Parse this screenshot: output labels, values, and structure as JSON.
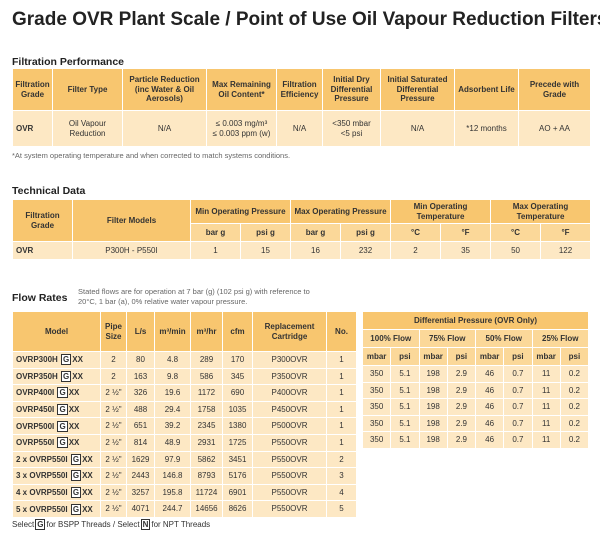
{
  "title": "Grade OVR Plant Scale / Point of Use Oil Vapour Reduction Filters",
  "performance": {
    "heading": "Filtration Performance",
    "headers": [
      "Filtration Grade",
      "Filter Type",
      "Particle Reduction (inc Water & Oil Aerosols)",
      "Max Remaining Oil Content*",
      "Filtration Efficiency",
      "Initial Dry Differential Pressure",
      "Initial Saturated Differential Pressure",
      "Adsorbent Life",
      "Precede with Grade"
    ],
    "rows": [
      [
        "OVR",
        [
          "Oil Vapour",
          "Reduction"
        ],
        "N/A",
        [
          "≤ 0.003 mg/m³",
          "≤ 0.003 ppm (w)"
        ],
        "N/A",
        [
          "<350 mbar",
          "<5 psi"
        ],
        "N/A",
        "*12 months",
        "AO + AA"
      ]
    ],
    "note": "*At system operating temperature and when corrected to match systems conditions."
  },
  "technical": {
    "heading": "Technical Data",
    "headers": [
      "Filtration Grade",
      "Filter Models"
    ],
    "groups": [
      {
        "label": "Min Operating Pressure",
        "units": [
          "bar g",
          "psi g"
        ]
      },
      {
        "label": "Max Operating Pressure",
        "units": [
          "bar g",
          "psi g"
        ]
      },
      {
        "label": "Min Operating Temperature",
        "units": [
          "°C",
          "°F"
        ]
      },
      {
        "label": "Max Operating Temperature",
        "units": [
          "°C",
          "°F"
        ]
      }
    ],
    "rows": [
      [
        "OVR",
        "P300H  - P550I",
        1,
        15,
        16,
        232,
        2,
        35,
        50,
        122
      ]
    ]
  },
  "flow": {
    "heading": "Flow Rates",
    "note": "Stated flows are for operation at 7 bar (g) (102 psi g) with reference to 20°C, 1 bar (a), 0% relative water vapour pressure.",
    "headers": [
      "Model",
      "Pipe Size",
      "L/s",
      "m³/min",
      "m³/hr",
      "cfm",
      "Replacement Cartridge",
      "No."
    ],
    "rows": [
      [
        {
          "name": "OVRP300H",
          "thread": "G",
          "suffix": "XX"
        },
        2,
        80,
        4.8,
        289,
        170,
        "P300OVR",
        1
      ],
      [
        {
          "name": "OVRP350H",
          "thread": "G",
          "suffix": "XX"
        },
        2,
        163,
        9.8,
        586,
        345,
        "P350OVR",
        1
      ],
      [
        {
          "name": "OVRP400I",
          "thread": "G",
          "suffix": "XX"
        },
        "2 ½\"",
        326,
        19.6,
        1172,
        690,
        "P400OVR",
        1
      ],
      [
        {
          "name": "OVRP450I",
          "thread": "G",
          "suffix": "XX"
        },
        "2 ½\"",
        488,
        29.4,
        1758,
        1035,
        "P450OVR",
        1
      ],
      [
        {
          "name": "OVRP500I",
          "thread": "G",
          "suffix": "XX"
        },
        "2 ½\"",
        651,
        39.2,
        2345,
        1380,
        "P500OVR",
        1
      ],
      [
        {
          "name": "OVRP550I",
          "thread": "G",
          "suffix": "XX"
        },
        "2 ½\"",
        814,
        48.9,
        2931,
        1725,
        "P550OVR",
        1
      ],
      [
        {
          "name": "2 x OVRP550I",
          "thread": "G",
          "suffix": "XX"
        },
        "2 ½\"",
        1629,
        97.9,
        5862,
        3451,
        "P550OVR",
        2
      ],
      [
        {
          "name": "3 x OVRP550I",
          "thread": "G",
          "suffix": "XX"
        },
        "2 ½\"",
        2443,
        146.8,
        8793,
        5176,
        "P550OVR",
        3
      ],
      [
        {
          "name": "4 x OVRP550I",
          "thread": "G",
          "suffix": "XX"
        },
        "2 ½\"",
        3257,
        195.8,
        11724,
        6901,
        "P550OVR",
        4
      ],
      [
        {
          "name": "5 x OVRP550I",
          "thread": "G",
          "suffix": "XX"
        },
        "2 ½\"",
        4071,
        244.7,
        14656,
        8626,
        "P550OVR",
        5
      ]
    ]
  },
  "pressure": {
    "title": "Differential Pressure (OVR Only)",
    "flows": [
      {
        "label": "100% Flow",
        "units": [
          "mbar",
          "psi"
        ]
      },
      {
        "label": "75% Flow",
        "units": [
          "mbar",
          "psi"
        ]
      },
      {
        "label": "50% Flow",
        "units": [
          "mbar",
          "psi"
        ]
      },
      {
        "label": "25% Flow",
        "units": [
          "mbar",
          "psi"
        ]
      }
    ],
    "rows": [
      [
        350,
        5.1,
        198,
        2.9,
        46,
        0.7,
        11,
        0.2
      ],
      [
        350,
        5.1,
        198,
        2.9,
        46,
        0.7,
        11,
        0.2
      ],
      [
        350,
        5.1,
        198,
        2.9,
        46,
        0.7,
        11,
        0.2
      ],
      [
        350,
        5.1,
        198,
        2.9,
        46,
        0.7,
        11,
        0.2
      ],
      [
        350,
        5.1,
        198,
        2.9,
        46,
        0.7,
        11,
        0.2
      ]
    ]
  },
  "footer": {
    "parts": [
      "Select",
      "G",
      "for BSPP Threads / Select",
      "N",
      "for NPT Threads"
    ]
  }
}
